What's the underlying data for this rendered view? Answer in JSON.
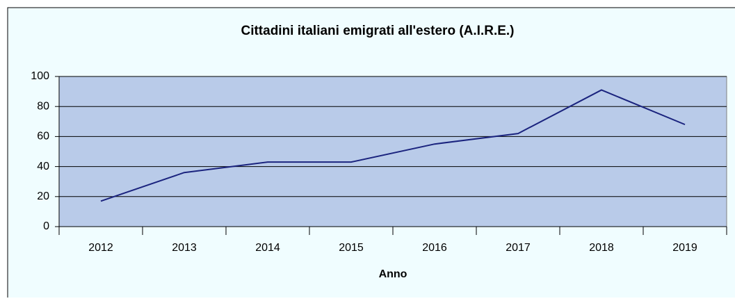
{
  "chart_data": {
    "type": "line",
    "title": "Cittadini italiani emigrati all'estero (A.I.R.E.)",
    "x_label": "Anno",
    "categories": [
      "2012",
      "2013",
      "2014",
      "2015",
      "2016",
      "2017",
      "2018",
      "2019"
    ],
    "values": [
      17,
      36,
      43,
      43,
      55,
      62,
      91,
      68
    ],
    "color": "#1a237e",
    "ylim": [
      0,
      100
    ],
    "yticks": [
      0,
      20,
      40,
      60,
      80,
      100
    ],
    "grid": true
  }
}
